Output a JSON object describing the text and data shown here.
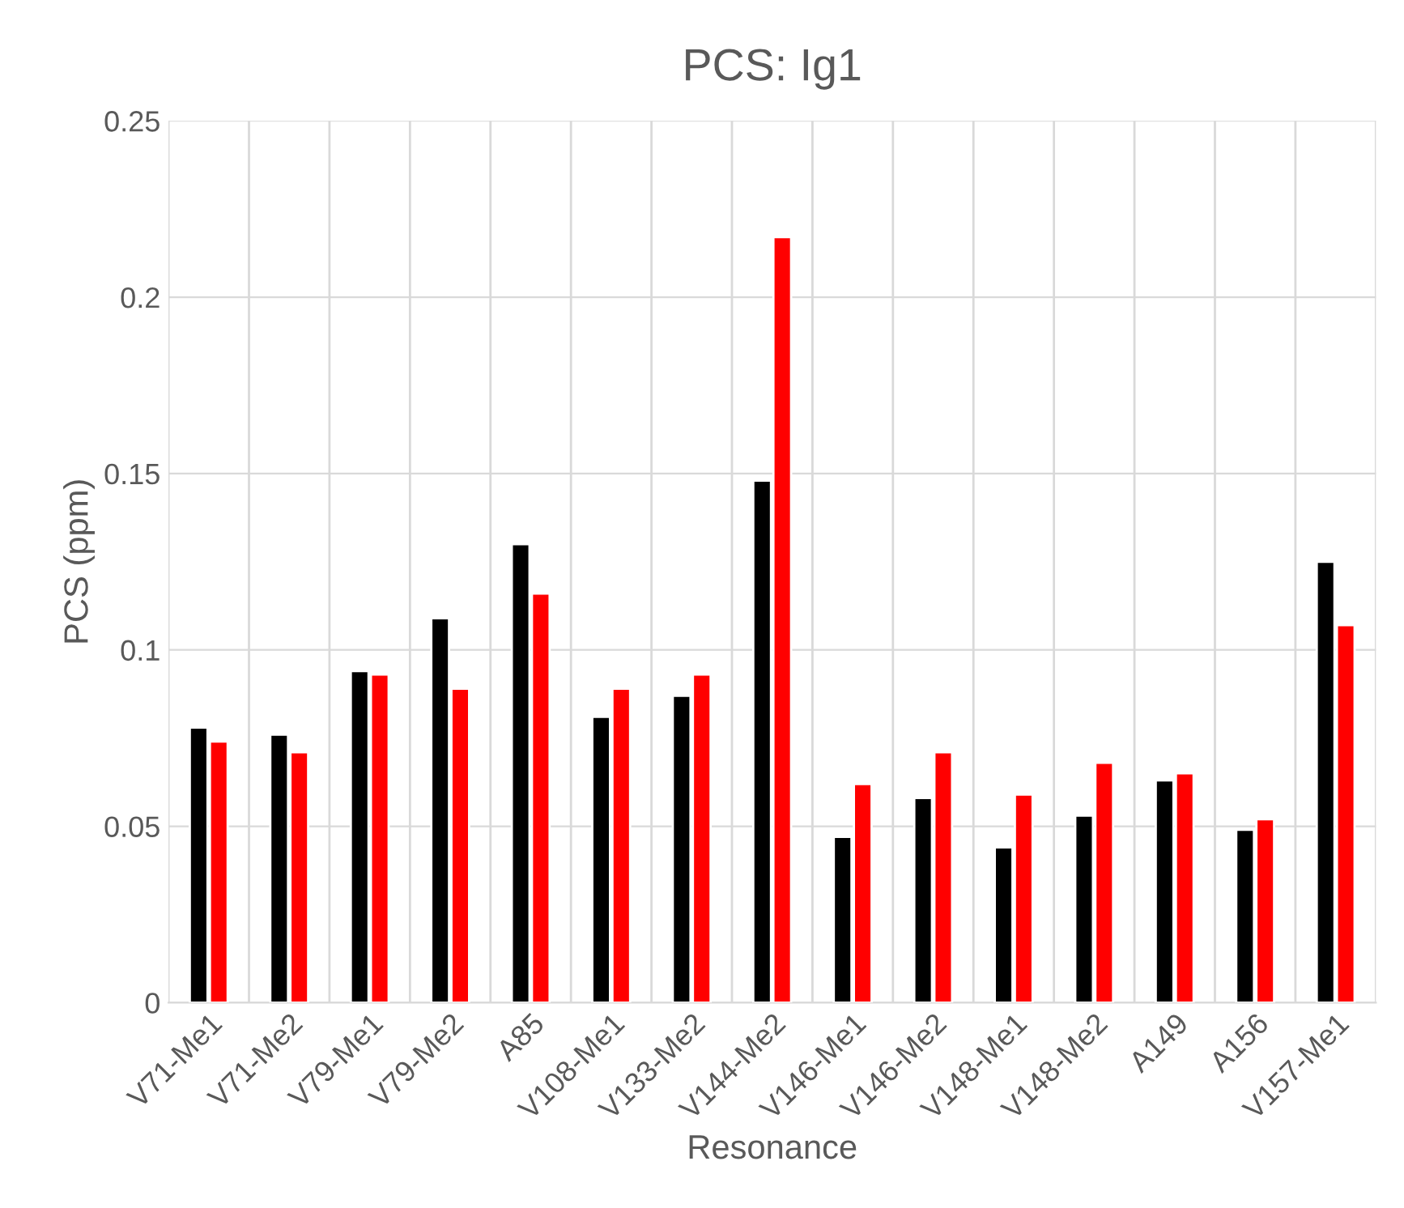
{
  "chart_data": {
    "type": "bar",
    "title": "PCS: Ig1",
    "xlabel": "Resonance",
    "ylabel": "PCS (ppm)",
    "categories": [
      "V71-Me1",
      "V71-Me2",
      "V79-Me1",
      "V79-Me2",
      "A85",
      "V108-Me1",
      "V133-Me2",
      "V144-Me2",
      "V146-Me1",
      "V146-Me2",
      "V148-Me1",
      "V148-Me2",
      "A149",
      "A156",
      "V157-Me1"
    ],
    "series": [
      {
        "color": "#000000",
        "values": [
          0.078,
          0.076,
          0.094,
          0.109,
          0.13,
          0.081,
          0.087,
          0.148,
          0.047,
          0.058,
          0.044,
          0.053,
          0.063,
          0.049,
          0.125
        ]
      },
      {
        "color": "#ff0000",
        "values": [
          0.074,
          0.071,
          0.093,
          0.089,
          0.116,
          0.089,
          0.093,
          0.217,
          0.062,
          0.071,
          0.059,
          0.068,
          0.065,
          0.052,
          0.107
        ]
      }
    ],
    "ylim": [
      0,
      0.25
    ],
    "yticks": [
      {
        "value": 0,
        "label": "0"
      },
      0.05,
      0.1,
      0.15,
      0.2,
      0.25
    ],
    "grid": true
  }
}
